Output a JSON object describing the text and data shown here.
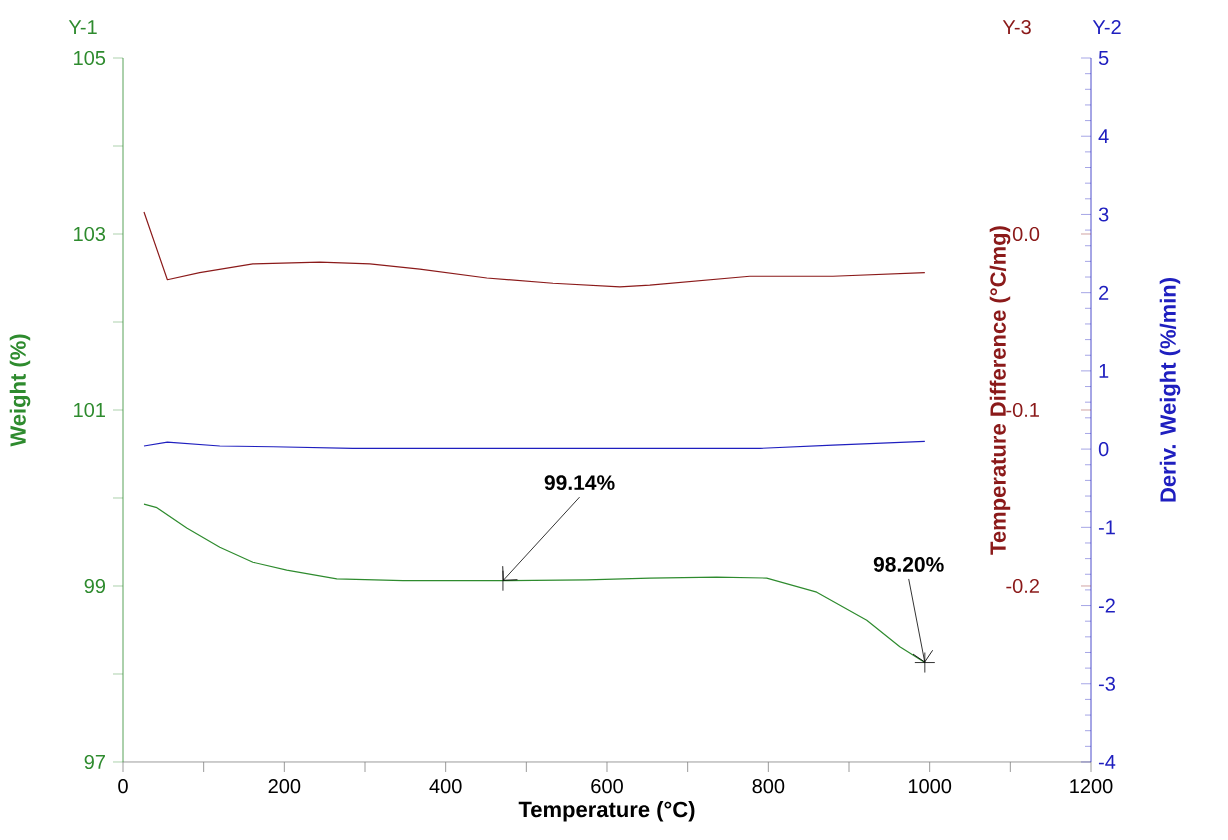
{
  "chart_data": {
    "type": "line",
    "xlabel": "Temperature (°C)",
    "ylabel": "Weight (%)",
    "y2label": "Deriv. Weight (%/min)",
    "y3label": "Temperature Difference (°C/mg)",
    "xlim": [
      0,
      1200
    ],
    "xticks": [
      0,
      {
        "value": 100,
        "label": null
      },
      200,
      {
        "value": 300,
        "label": null
      },
      400,
      {
        "value": 500,
        "label": null
      },
      600,
      {
        "value": 700,
        "label": null
      },
      800,
      {
        "value": 900,
        "label": null
      },
      1000,
      {
        "value": 1100,
        "label": null
      },
      1200
    ],
    "ylim": [
      97,
      105
    ],
    "yticks": [
      97,
      {
        "value": 98,
        "label": null
      },
      99,
      {
        "value": 100,
        "label": null
      },
      101,
      {
        "value": 102,
        "label": null
      },
      103,
      {
        "value": 104,
        "label": null
      },
      105
    ],
    "y2lim": [
      -4,
      5
    ],
    "y2ticks": [
      -4,
      -3,
      -2,
      -1,
      0,
      1,
      2,
      3,
      4,
      5
    ],
    "y3lim": [
      -0.3,
      0.1
    ],
    "y3ticks": [
      -0.2,
      -0.1,
      {
        "value": 0,
        "label": "0.0"
      }
    ],
    "series": [
      {
        "axis": "y",
        "color": "#2e8b2e",
        "x": [
          26,
          42,
          79,
          120,
          161,
          203,
          265,
          347,
          471,
          575,
          653,
          736,
          798,
          860,
          922,
          963,
          994
        ],
        "values": [
          99.93,
          99.89,
          99.66,
          99.44,
          99.27,
          99.18,
          99.08,
          99.06,
          99.06,
          99.07,
          99.09,
          99.1,
          99.09,
          98.93,
          98.61,
          98.31,
          98.13
        ]
      },
      {
        "axis": "y2",
        "color": "#1f1fbf",
        "x": [
          26,
          55,
          120,
          186,
          285,
          616,
          790,
          880,
          994
        ],
        "values": [
          0.04,
          0.09,
          0.04,
          0.03,
          0.01,
          0.01,
          0.01,
          0.05,
          0.1
        ]
      },
      {
        "axis": "y3",
        "color": "#8b1a1a",
        "x": [
          26,
          55,
          95,
          161,
          244,
          306,
          368,
          451,
          533,
          616,
          653,
          777,
          880,
          994
        ],
        "values": [
          0.0125,
          -0.026,
          -0.022,
          -0.017,
          -0.016,
          -0.017,
          -0.02,
          -0.025,
          -0.028,
          -0.03,
          -0.029,
          -0.024,
          -0.024,
          -0.022
        ]
      }
    ],
    "annotations": [
      "Y-1",
      "Y-3",
      "Y-2",
      {
        "text": "99.14%",
        "x": 471,
        "y": 99.06
      },
      {
        "text": "98.20%",
        "x": 994,
        "y": 98.13
      }
    ],
    "grid": false
  }
}
